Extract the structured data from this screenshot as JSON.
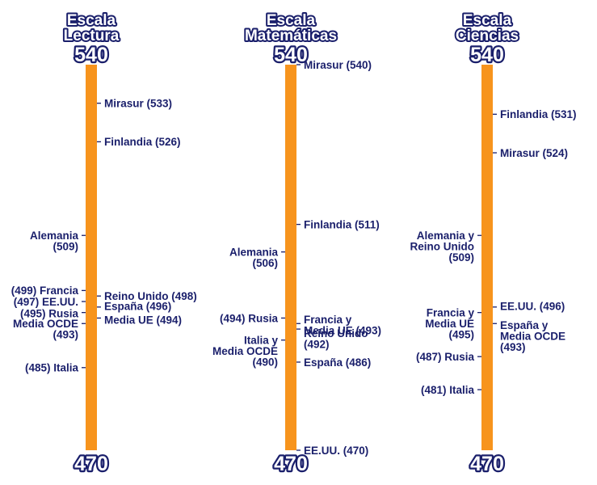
{
  "colors": {
    "bar": "#f7941d",
    "text": "#1a1f6b"
  },
  "chart_data": [
    {
      "type": "scale",
      "title_lines": [
        "Escala",
        "Lectura"
      ],
      "max_label": "540",
      "min_label": "470",
      "ylim": [
        470,
        540
      ],
      "points": [
        {
          "value": 533,
          "side": "right",
          "lines": [
            "Mirasur (533)"
          ]
        },
        {
          "value": 526,
          "side": "right",
          "lines": [
            "Finlandia (526)"
          ]
        },
        {
          "value": 509,
          "side": "left",
          "lines": [
            "Alemania",
            "(509)"
          ]
        },
        {
          "value": 499,
          "side": "left",
          "lines": [
            "(499) Francia"
          ]
        },
        {
          "value": 498,
          "side": "right",
          "lines": [
            "Reino Unido (498)"
          ]
        },
        {
          "value": 497,
          "side": "left",
          "lines": [
            "(497) EE.UU."
          ]
        },
        {
          "value": 496,
          "side": "right",
          "lines": [
            "España (496)"
          ]
        },
        {
          "value": 495,
          "side": "left",
          "lines": [
            "(495) Rusia"
          ]
        },
        {
          "value": 494,
          "side": "right",
          "lines": [
            "Media UE (494)"
          ]
        },
        {
          "value": 493,
          "side": "left",
          "lines": [
            "Media OCDE",
            "(493)"
          ]
        },
        {
          "value": 485,
          "side": "left",
          "lines": [
            "(485) Italia"
          ]
        }
      ]
    },
    {
      "type": "scale",
      "title_lines": [
        "Escala",
        "Matemáticas"
      ],
      "max_label": "540",
      "min_label": "470",
      "ylim": [
        470,
        540
      ],
      "points": [
        {
          "value": 540,
          "side": "right",
          "lines": [
            "Mirasur (540)"
          ]
        },
        {
          "value": 511,
          "side": "right",
          "lines": [
            "Finlandia (511)"
          ]
        },
        {
          "value": 506,
          "side": "left",
          "lines": [
            "Alemania",
            "(506)"
          ]
        },
        {
          "value": 494,
          "side": "left",
          "lines": [
            "(494) Rusia"
          ]
        },
        {
          "value": 493,
          "side": "right",
          "lines": [
            "Francia y",
            "Media UE (493)"
          ]
        },
        {
          "value": 492,
          "side": "right",
          "lines": [
            "Reino Unido",
            "(492)"
          ]
        },
        {
          "value": 490,
          "side": "left",
          "lines": [
            "Italia y",
            "Media OCDE",
            "(490)"
          ]
        },
        {
          "value": 486,
          "side": "right",
          "lines": [
            "España (486)"
          ]
        },
        {
          "value": 470,
          "side": "right",
          "lines": [
            "EE.UU. (470)"
          ]
        }
      ]
    },
    {
      "type": "scale",
      "title_lines": [
        "Escala",
        "Ciencias"
      ],
      "max_label": "540",
      "min_label": "470",
      "ylim": [
        470,
        540
      ],
      "points": [
        {
          "value": 531,
          "side": "right",
          "lines": [
            "Finlandia (531)"
          ]
        },
        {
          "value": 524,
          "side": "right",
          "lines": [
            "Mirasur (524)"
          ]
        },
        {
          "value": 509,
          "side": "left",
          "lines": [
            "Alemania y",
            "Reino Unido",
            "(509)"
          ]
        },
        {
          "value": 496,
          "side": "right",
          "lines": [
            "EE.UU. (496)"
          ]
        },
        {
          "value": 495,
          "side": "left",
          "lines": [
            "Francia y",
            "Media UE",
            "(495)"
          ]
        },
        {
          "value": 493,
          "side": "right",
          "lines": [
            "España y",
            "Media OCDE",
            "(493)"
          ]
        },
        {
          "value": 487,
          "side": "left",
          "lines": [
            "(487) Rusia"
          ]
        },
        {
          "value": 481,
          "side": "left",
          "lines": [
            "(481) Italia"
          ]
        }
      ]
    }
  ]
}
